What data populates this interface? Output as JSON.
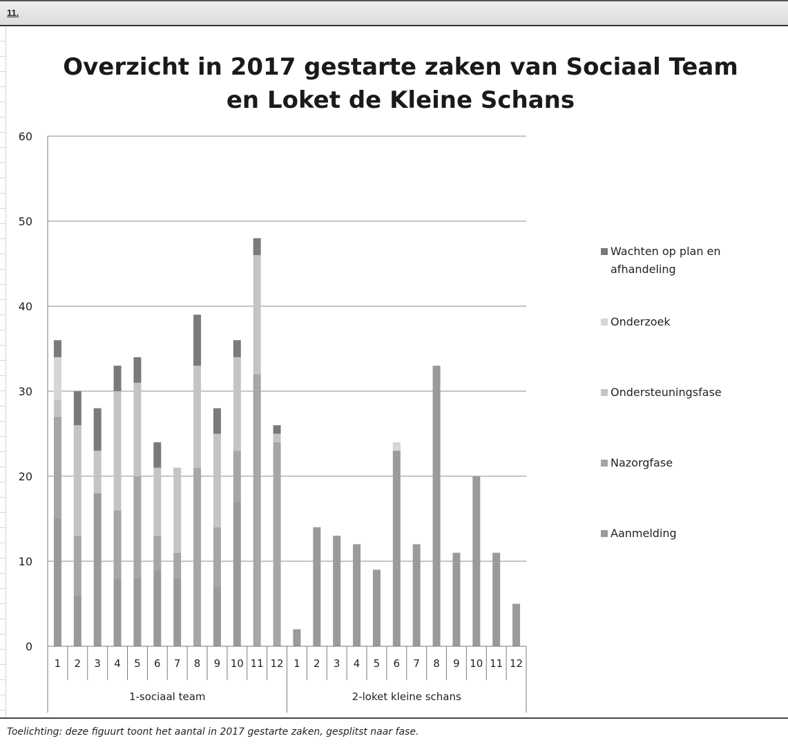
{
  "header": {
    "section_number": "11."
  },
  "caption": "Toelichting: deze figuurt toont het aantal in 2017 gestarte zaken, gesplitst naar fase.",
  "chart_data": {
    "type": "bar",
    "stacked": true,
    "title": [
      "Overzicht in 2017 gestarte zaken van Sociaal Team",
      "en Loket de Kleine Schans"
    ],
    "ylim": [
      0,
      60
    ],
    "yticks": [
      0,
      10,
      20,
      30,
      40,
      50,
      60
    ],
    "grid": true,
    "legend_position": "right",
    "groups": [
      {
        "label": "1-sociaal team",
        "categories": [
          "1",
          "2",
          "3",
          "4",
          "5",
          "6",
          "7",
          "8",
          "9",
          "10",
          "11",
          "12"
        ]
      },
      {
        "label": "2-loket kleine schans",
        "categories": [
          "1",
          "2",
          "3",
          "4",
          "5",
          "6",
          "7",
          "8",
          "9",
          "10",
          "11",
          "12"
        ]
      }
    ],
    "series": [
      {
        "name": "Aanmelding",
        "color": "#9a9a9a",
        "values": [
          15,
          6,
          18,
          8,
          8,
          9,
          8,
          0,
          7,
          17,
          0,
          0,
          2,
          14,
          13,
          12,
          9,
          23,
          12,
          33,
          11,
          20,
          11,
          5
        ]
      },
      {
        "name": "Nazorgfase",
        "color": "#a6a6a6",
        "values": [
          12,
          7,
          0,
          8,
          12,
          4,
          3,
          21,
          7,
          6,
          32,
          24,
          0,
          0,
          0,
          0,
          0,
          0,
          0,
          0,
          0,
          0,
          0,
          0
        ]
      },
      {
        "name": "Ondersteuningsfase",
        "color": "#c4c4c4",
        "values": [
          2,
          13,
          5,
          14,
          11,
          8,
          10,
          12,
          11,
          11,
          14,
          1,
          0,
          0,
          0,
          0,
          0,
          0,
          0,
          0,
          0,
          0,
          0,
          0
        ]
      },
      {
        "name": "Onderzoek",
        "color": "#d6d6d6",
        "values": [
          5,
          0,
          0,
          0,
          0,
          0,
          0,
          0,
          0,
          0,
          0,
          0,
          0,
          0,
          0,
          0,
          0,
          1,
          0,
          0,
          0,
          0,
          0,
          0
        ]
      },
      {
        "name": "Wachten op plan en afhandeling",
        "color": "#7a7a7a",
        "values": [
          2,
          4,
          5,
          3,
          3,
          3,
          0,
          6,
          3,
          2,
          2,
          1,
          0,
          0,
          0,
          0,
          0,
          0,
          0,
          0,
          0,
          0,
          0,
          0
        ]
      }
    ]
  }
}
